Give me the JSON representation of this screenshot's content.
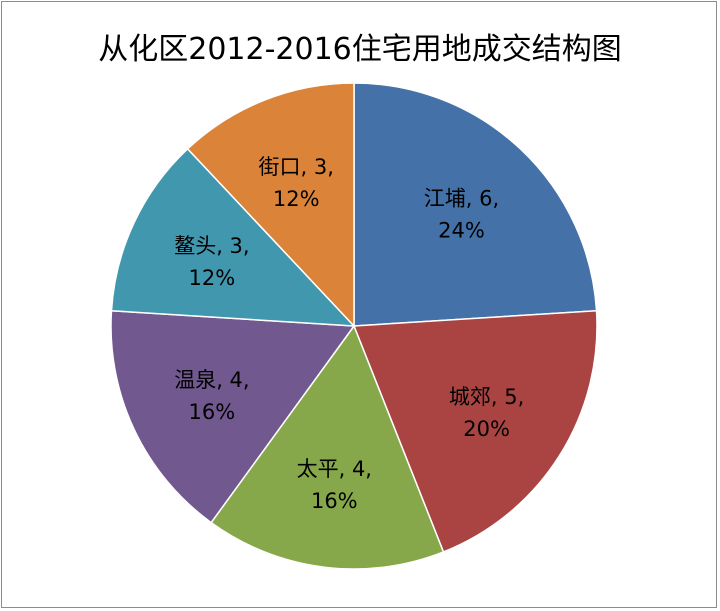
{
  "chart_data": {
    "type": "pie",
    "title": "从化区2012-2016住宅用地成交结构图",
    "categories": [
      "江埔",
      "城郊",
      "太平",
      "温泉",
      "鳌头",
      "街口"
    ],
    "values": [
      6,
      5,
      4,
      4,
      3,
      3
    ],
    "percent_labels": [
      "24%",
      "20%",
      "16%",
      "16%",
      "12%",
      "12%"
    ],
    "data_labels": [
      {
        "line1": "江埔, 6,",
        "line2": "24%"
      },
      {
        "line1": "城郊, 5,",
        "line2": "20%"
      },
      {
        "line1": "太平, 4,",
        "line2": "16%"
      },
      {
        "line1": "温泉, 4,",
        "line2": "16%"
      },
      {
        "line1": "鳌头, 3,",
        "line2": "12%"
      },
      {
        "line1": "街口, 3,",
        "line2": "12%"
      }
    ],
    "colors": [
      "#4472a8",
      "#a94442",
      "#87a84a",
      "#71588f",
      "#4197ae",
      "#db8439"
    ],
    "start_angle_deg": 0,
    "direction": "clockwise",
    "legend": "none"
  }
}
